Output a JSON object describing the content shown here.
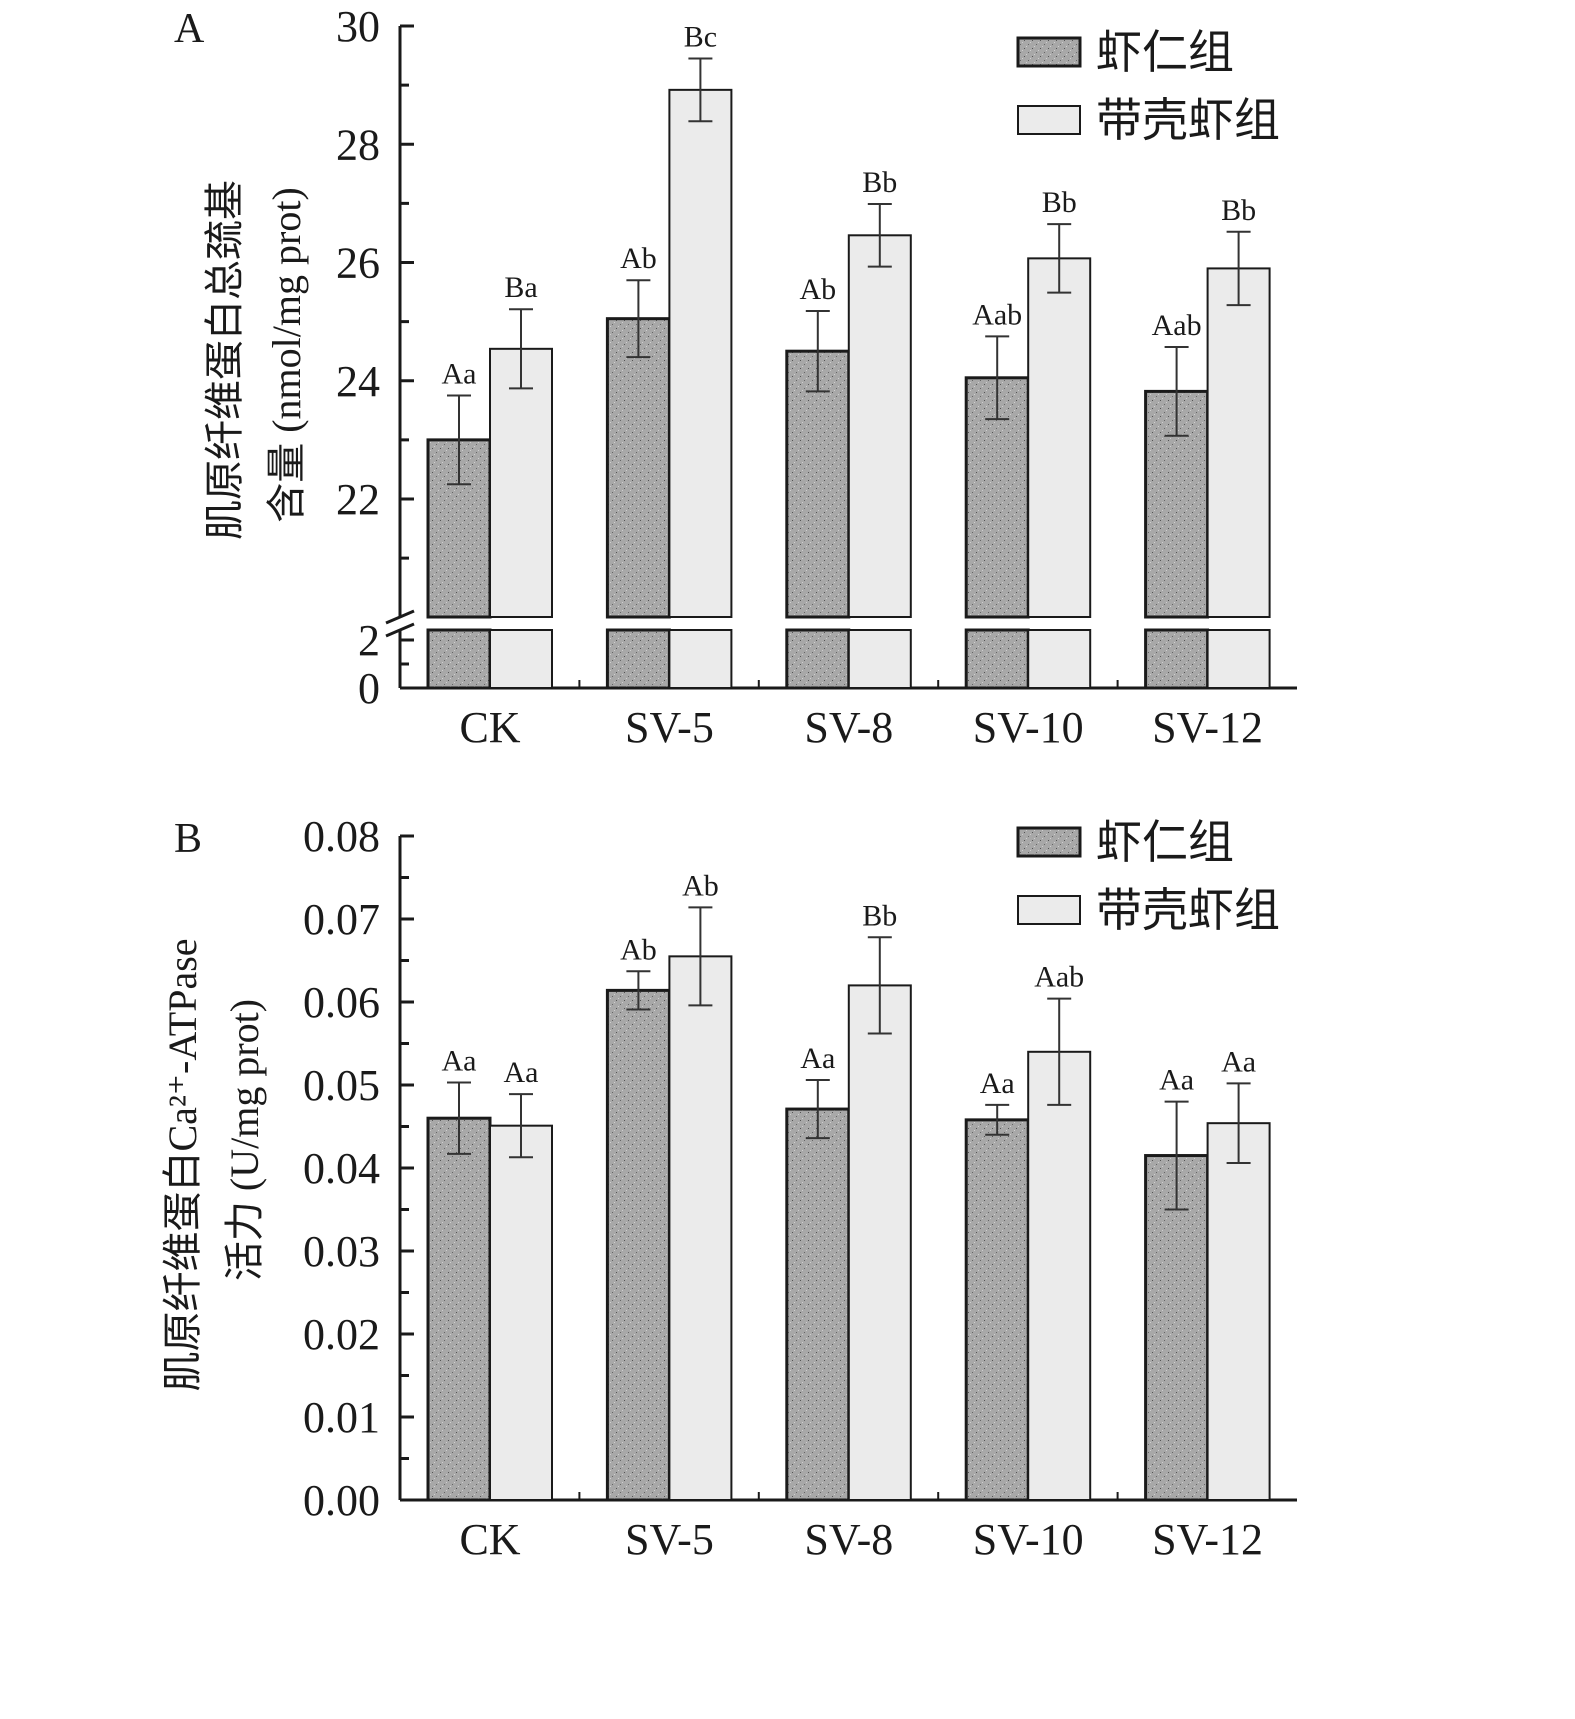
{
  "colors": {
    "peeled_fill": "#a8a8a8",
    "shell_fill": "#ebebeb",
    "stroke": "#1a1a1a"
  },
  "chart_data": [
    {
      "type": "bar",
      "panel_label": "A",
      "title": "",
      "xlabel": "",
      "ylabel_line1": "肌原纤维蛋白总巯基",
      "ylabel_line2": "含量 (nmol/mg prot)",
      "categories": [
        "CK",
        "SV-5",
        "SV-8",
        "SV-10",
        "SV-12"
      ],
      "ylim": [
        0,
        30
      ],
      "axis_break": [
        3,
        21
      ],
      "yticks_lower": [
        "0",
        "2"
      ],
      "yticks_upper": [
        "22",
        "24",
        "26",
        "28",
        "30"
      ],
      "legend_position": "top-right",
      "series": [
        {
          "name": "虾仁组",
          "values": [
            23.0,
            25.05,
            24.5,
            24.05,
            23.82
          ],
          "errors": [
            0.75,
            0.65,
            0.68,
            0.7,
            0.75
          ],
          "labels": [
            "Aa",
            "Ab",
            "Ab",
            "Aab",
            "Aab"
          ]
        },
        {
          "name": "带壳虾组",
          "values": [
            24.54,
            28.92,
            26.46,
            26.07,
            25.9
          ],
          "errors": [
            0.67,
            0.53,
            0.53,
            0.58,
            0.62
          ],
          "labels": [
            "Ba",
            "Bc",
            "Bb",
            "Bb",
            "Bb"
          ]
        }
      ]
    },
    {
      "type": "bar",
      "panel_label": "B",
      "title": "",
      "xlabel": "",
      "ylabel_line1": "肌原纤维蛋白Ca²⁺-ATPase",
      "ylabel_line2": "活力 (U/mg prot)",
      "categories": [
        "CK",
        "SV-5",
        "SV-8",
        "SV-10",
        "SV-12"
      ],
      "ylim": [
        0,
        0.08
      ],
      "yticks": [
        "0.00",
        "0.01",
        "0.02",
        "0.03",
        "0.04",
        "0.05",
        "0.06",
        "0.07",
        "0.08"
      ],
      "legend_position": "top-right",
      "series": [
        {
          "name": "虾仁组",
          "values": [
            0.046,
            0.0614,
            0.0471,
            0.0458,
            0.0415
          ],
          "errors": [
            0.0043,
            0.0023,
            0.0035,
            0.0018,
            0.0065
          ],
          "labels": [
            "Aa",
            "Ab",
            "Aa",
            "Aa",
            "Aa"
          ]
        },
        {
          "name": "带壳虾组",
          "values": [
            0.0451,
            0.0655,
            0.062,
            0.054,
            0.0454
          ],
          "errors": [
            0.0038,
            0.0059,
            0.0058,
            0.0064,
            0.0048
          ],
          "labels": [
            "Aa",
            "Ab",
            "Bb",
            "Aab",
            "Aa"
          ]
        }
      ]
    }
  ]
}
